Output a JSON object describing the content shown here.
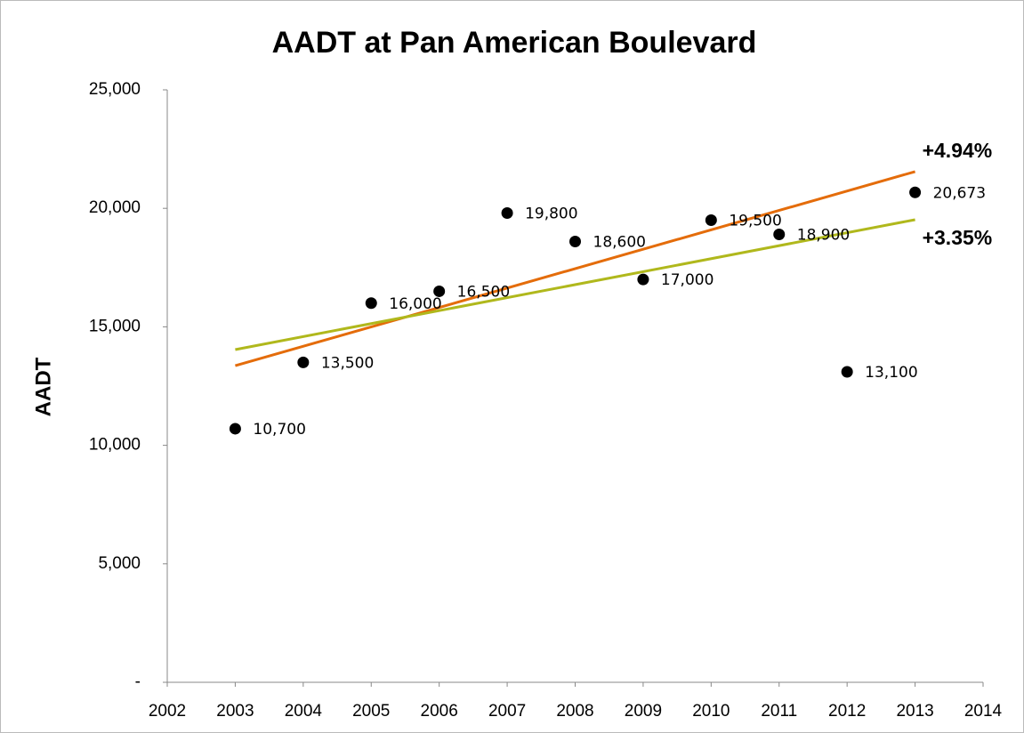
{
  "chart_data": {
    "type": "scatter",
    "title": "AADT at Pan American Boulevard",
    "ylabel": "AADT",
    "x": [
      2003,
      2004,
      2005,
      2006,
      2007,
      2008,
      2009,
      2010,
      2011,
      2012,
      2013
    ],
    "values": [
      10700,
      13500,
      16000,
      16500,
      19800,
      18600,
      17000,
      19500,
      18900,
      13100,
      20673
    ],
    "value_labels": [
      "10,700",
      "13,500",
      "16,000",
      "16,500",
      "19,800",
      "18,600",
      "17,000",
      "19,500",
      "18,900",
      "13,100",
      "20,673"
    ],
    "color": "#000000",
    "trendlines": [
      {
        "color": "#e46c0a",
        "x": [
          2003,
          2013
        ],
        "values": [
          13360,
          21550
        ],
        "label": "+4.94%"
      },
      {
        "color": "#b0b81c",
        "x": [
          2003,
          2013
        ],
        "values": [
          14040,
          19520
        ],
        "label": "+3.35%"
      }
    ],
    "xlim": [
      2002,
      2014
    ],
    "xticks": [
      2002,
      2003,
      2004,
      2005,
      2006,
      2007,
      2008,
      2009,
      2010,
      2011,
      2012,
      2013,
      2014
    ],
    "ylim": [
      0,
      25000
    ],
    "yticks": [
      {
        "value": 0,
        "label": "-"
      },
      {
        "value": 5000,
        "label": "5,000"
      },
      {
        "value": 10000,
        "label": "10,000"
      },
      {
        "value": 15000,
        "label": "15,000"
      },
      {
        "value": 20000,
        "label": "20,000"
      },
      {
        "value": 25000,
        "label": "25,000"
      }
    ],
    "grid": false
  }
}
